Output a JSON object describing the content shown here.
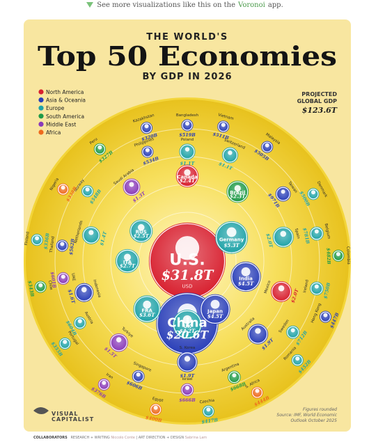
{
  "topbar": {
    "text_before": "See more visualizations like this on the",
    "link": "Voronoi",
    "text_after": "app."
  },
  "header": {
    "overline": "THE WORLD'S",
    "title": "Top 50 Economies",
    "subtitle": "BY GDP IN 2026"
  },
  "legend": [
    {
      "name": "North America",
      "color": "#d8202f"
    },
    {
      "name": "Asia & Oceania",
      "color": "#2a3fb8"
    },
    {
      "name": "Europe",
      "color": "#20a3a8"
    },
    {
      "name": "South America",
      "color": "#1f9a47"
    },
    {
      "name": "Middle East",
      "color": "#8a3ab9"
    },
    {
      "name": "Africa",
      "color": "#ee6a1d"
    }
  ],
  "global": {
    "label_line1": "PROJECTED",
    "label_line2": "GLOBAL GDP",
    "value": "$123.6T"
  },
  "brand": {
    "line1": "VISUAL",
    "line2": "CAPITALIST"
  },
  "source": {
    "line1": "Figures rounded",
    "line2": "Source: IMF, World Economic",
    "line3": "Outlook October 2025"
  },
  "footer": {
    "collaborators": "COLLABORATORS",
    "rw": "RESEARCH + WRITING",
    "rw_name": "Niccolo Conte",
    "ad": "ART DIRECTION + DESIGN",
    "ad_name": "Sabrina Lam"
  },
  "chart_data": {
    "type": "bubble",
    "title": "Top 50 Economies",
    "subtitle": "BY GDP IN 2026",
    "countries": [
      {
        "name": "U.S.",
        "label": "$31.8T",
        "value_trillion": 31.8,
        "region": "North America"
      },
      {
        "name": "China",
        "label": "$20.6T",
        "value_trillion": 20.6,
        "region": "Asia & Oceania"
      },
      {
        "name": "Germany",
        "label": "$5.3T",
        "value_trillion": 5.3,
        "region": "Europe"
      },
      {
        "name": "Japan",
        "label": "$4.5T",
        "value_trillion": 4.5,
        "region": "Asia & Oceania"
      },
      {
        "name": "India",
        "label": "$4.5T",
        "value_trillion": 4.5,
        "region": "Asia & Oceania"
      },
      {
        "name": "UK",
        "label": "$4.2T",
        "value_trillion": 4.2,
        "region": "Europe"
      },
      {
        "name": "FRA",
        "label": "$3.6T",
        "value_trillion": 3.6,
        "region": "Europe"
      },
      {
        "name": "ITA",
        "label": "$2.7T",
        "value_trillion": 2.7,
        "region": "Europe"
      },
      {
        "name": "RUS",
        "label": "$2.5T",
        "value_trillion": 2.5,
        "region": "Europe"
      },
      {
        "name": "Canada",
        "label": "$2.4T",
        "value_trillion": 2.4,
        "region": "North America"
      },
      {
        "name": "Brazil",
        "label": "$2.3T",
        "value_trillion": 2.3,
        "region": "South America"
      },
      {
        "name": "Spain",
        "label": "$2.0T",
        "value_trillion": 2.0,
        "region": "Europe"
      },
      {
        "name": "Mexico",
        "label": "$2.0T",
        "value_trillion": 2.0,
        "region": "North America"
      },
      {
        "name": "S. Korea",
        "label": "$1.9T",
        "value_trillion": 1.9,
        "region": "Asia & Oceania"
      },
      {
        "name": "Australia",
        "label": "$1.9T",
        "value_trillion": 1.9,
        "region": "Asia & Oceania"
      },
      {
        "name": "Indonesia",
        "label": "$1.6T",
        "value_trillion": 1.6,
        "region": "Asia & Oceania"
      },
      {
        "name": "Turkiye",
        "label": "$1.5T",
        "value_trillion": 1.5,
        "region": "Middle East"
      },
      {
        "name": "Netherlands",
        "label": "$1.4T",
        "value_trillion": 1.4,
        "region": "Europe"
      },
      {
        "name": "Saudi Arabia",
        "label": "$1.3T",
        "value_trillion": 1.3,
        "region": "Middle East"
      },
      {
        "name": "Poland",
        "label": "$1.1T",
        "value_trillion": 1.1,
        "region": "Europe"
      },
      {
        "name": "Switzerland",
        "label": "$1.1T",
        "value_trillion": 1.1,
        "region": "Europe"
      },
      {
        "name": "Taiwan",
        "label": "$971B",
        "value_trillion": 0.971,
        "region": "Asia & Oceania"
      },
      {
        "name": "Belgium",
        "label": "$781B",
        "value_trillion": 0.781,
        "region": "Europe"
      },
      {
        "name": "Ireland",
        "label": "$750B",
        "value_trillion": 0.75,
        "region": "Europe"
      },
      {
        "name": "Sweden",
        "label": "$712B",
        "value_trillion": 0.712,
        "region": "Europe"
      },
      {
        "name": "Argentina",
        "label": "$668B",
        "value_trillion": 0.668,
        "region": "South America"
      },
      {
        "name": "Israel",
        "label": "$666B",
        "value_trillion": 0.666,
        "region": "Middle East"
      },
      {
        "name": "UAE",
        "label": "$601B",
        "value_trillion": 0.601,
        "region": "Middle East"
      },
      {
        "name": "Austria",
        "label": "$604B",
        "value_trillion": 0.604,
        "region": "Europe"
      },
      {
        "name": "Singapore",
        "label": "$606B",
        "value_trillion": 0.606,
        "region": "Asia & Oceania"
      },
      {
        "name": "Norway",
        "label": "$548B",
        "value_trillion": 0.548,
        "region": "Europe"
      },
      {
        "name": "Thailand",
        "label": "$562B",
        "value_trillion": 0.562,
        "region": "Asia & Oceania"
      },
      {
        "name": "Philippines",
        "label": "$534B",
        "value_trillion": 0.534,
        "region": "Asia & Oceania"
      },
      {
        "name": "Bangladesh",
        "label": "$519B",
        "value_trillion": 0.519,
        "region": "Asia & Oceania"
      },
      {
        "name": "Vietnam",
        "label": "$511B",
        "value_trillion": 0.511,
        "region": "Asia & Oceania"
      },
      {
        "name": "Malaysia",
        "label": "$505B",
        "value_trillion": 0.505,
        "region": "Asia & Oceania"
      },
      {
        "name": "Denmark",
        "label": "$500B",
        "value_trillion": 0.5,
        "region": "Europe"
      },
      {
        "name": "Colombia",
        "label": "$482B",
        "value_trillion": 0.482,
        "region": "South America"
      },
      {
        "name": "Hong Kong",
        "label": "$447B",
        "value_trillion": 0.447,
        "region": "Asia & Oceania"
      },
      {
        "name": "Romania",
        "label": "$452B",
        "value_trillion": 0.452,
        "region": "Europe"
      },
      {
        "name": "S. Africa",
        "label": "$444B",
        "value_trillion": 0.444,
        "region": "Africa"
      },
      {
        "name": "Czechia",
        "label": "$417B",
        "value_trillion": 0.417,
        "region": "Europe"
      },
      {
        "name": "Egypt",
        "label": "$400B",
        "value_trillion": 0.4,
        "region": "Africa"
      },
      {
        "name": "Iran",
        "label": "$376B",
        "value_trillion": 0.376,
        "region": "Middle East"
      },
      {
        "name": "Portugal",
        "label": "$355B",
        "value_trillion": 0.355,
        "region": "Europe"
      },
      {
        "name": "Chile",
        "label": "$343B",
        "value_trillion": 0.343,
        "region": "South America"
      },
      {
        "name": "Finland",
        "label": "$336B",
        "value_trillion": 0.336,
        "region": "Europe"
      },
      {
        "name": "Nigeria",
        "label": "$338B",
        "value_trillion": 0.338,
        "region": "Africa"
      },
      {
        "name": "Peru",
        "label": "$327B",
        "value_trillion": 0.327,
        "region": "South America"
      },
      {
        "name": "Kazakhstan",
        "label": "$320B",
        "value_trillion": 0.32,
        "region": "Asia & Oceania"
      }
    ],
    "extra_labels": {
      "U.S.": "USD"
    }
  }
}
